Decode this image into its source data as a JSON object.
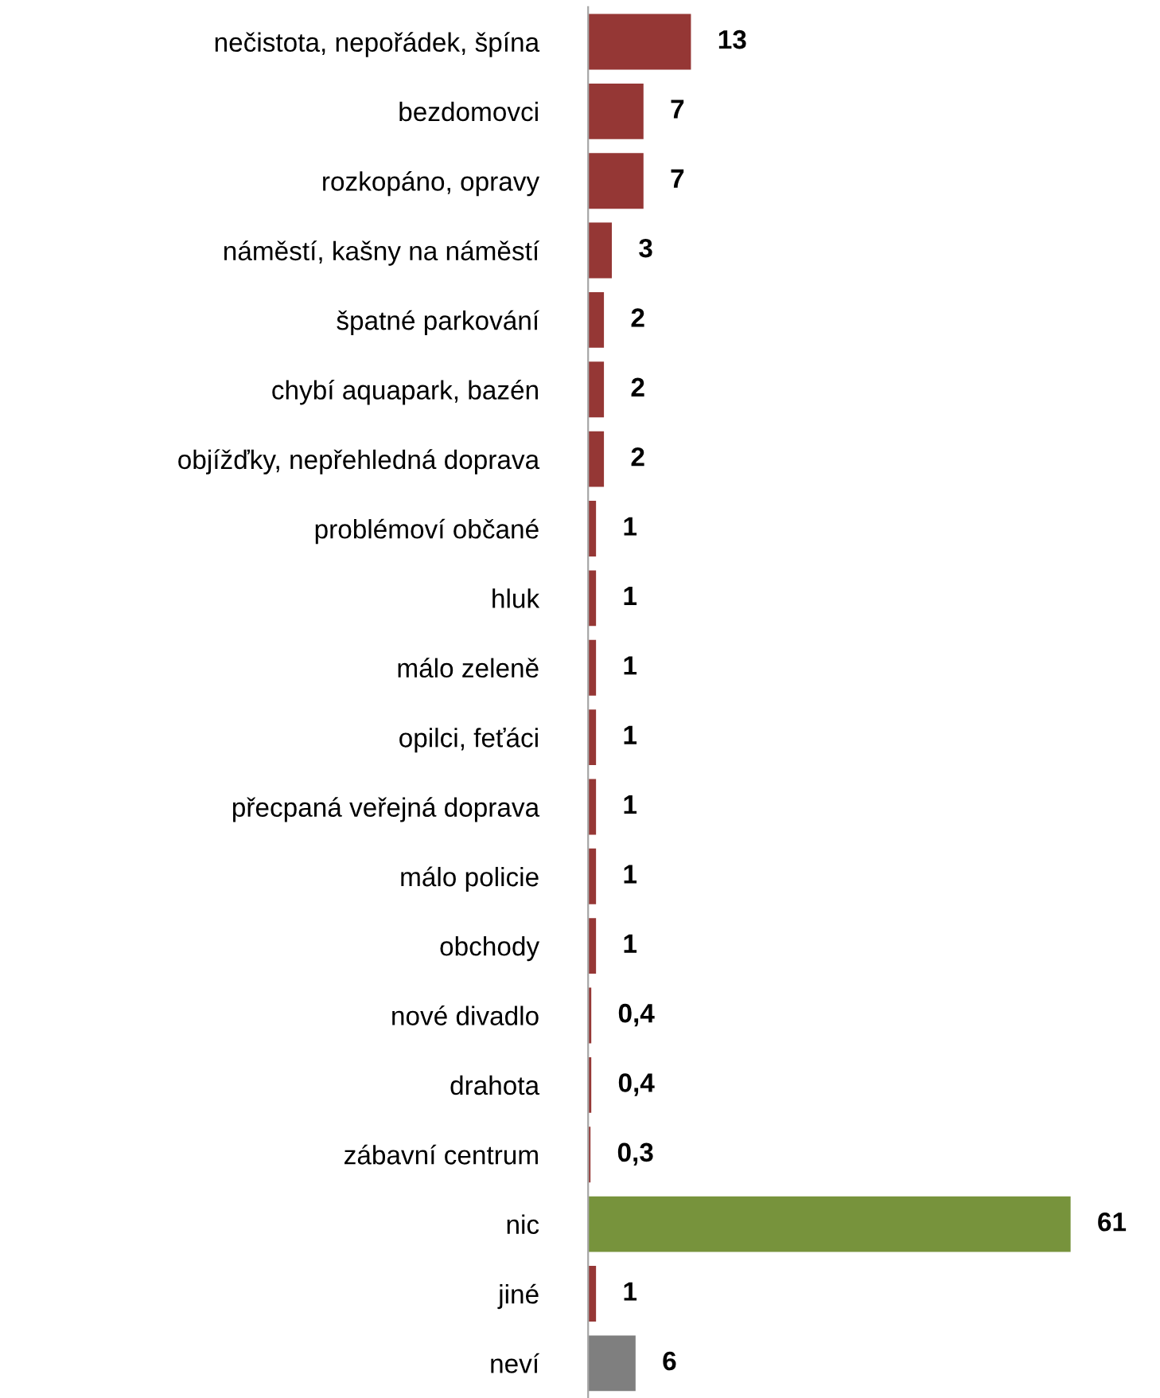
{
  "chart_data": {
    "type": "bar",
    "orientation": "horizontal",
    "grid": false,
    "tick_labels": "y",
    "value_labels": [
      "13",
      "7",
      "7",
      "3",
      "2",
      "2",
      "2",
      "1",
      "1",
      "1",
      "1",
      "1",
      "1",
      "1",
      "0,4",
      "0,4",
      "0,3",
      "61",
      "1",
      "6"
    ],
    "categories": [
      "nečistota, nepořádek, špína",
      "bezdomovci",
      "rozkopáno, opravy",
      "náměstí, kašny na náměstí",
      "špatné parkování",
      "chybí aquapark, bazén",
      "objížďky, nepřehledná doprava",
      "problémoví občané",
      "hluk",
      "málo zeleně",
      "opilci, feťáci",
      "přecpaná veřejná doprava",
      "málo policie",
      "obchody",
      "nové divadlo",
      "drahota",
      "zábavní centrum",
      "nic",
      "jiné",
      "neví"
    ],
    "values": [
      13,
      7,
      7,
      3,
      2,
      2,
      2,
      1,
      1,
      1,
      1,
      1,
      1,
      1,
      0.4,
      0.4,
      0.3,
      61,
      1,
      6
    ],
    "colors": [
      "#953735",
      "#953735",
      "#953735",
      "#953735",
      "#953735",
      "#953735",
      "#953735",
      "#953735",
      "#953735",
      "#953735",
      "#953735",
      "#953735",
      "#953735",
      "#953735",
      "#953735",
      "#953735",
      "#953735",
      "#77933c",
      "#953735",
      "#7f7f7f"
    ]
  }
}
